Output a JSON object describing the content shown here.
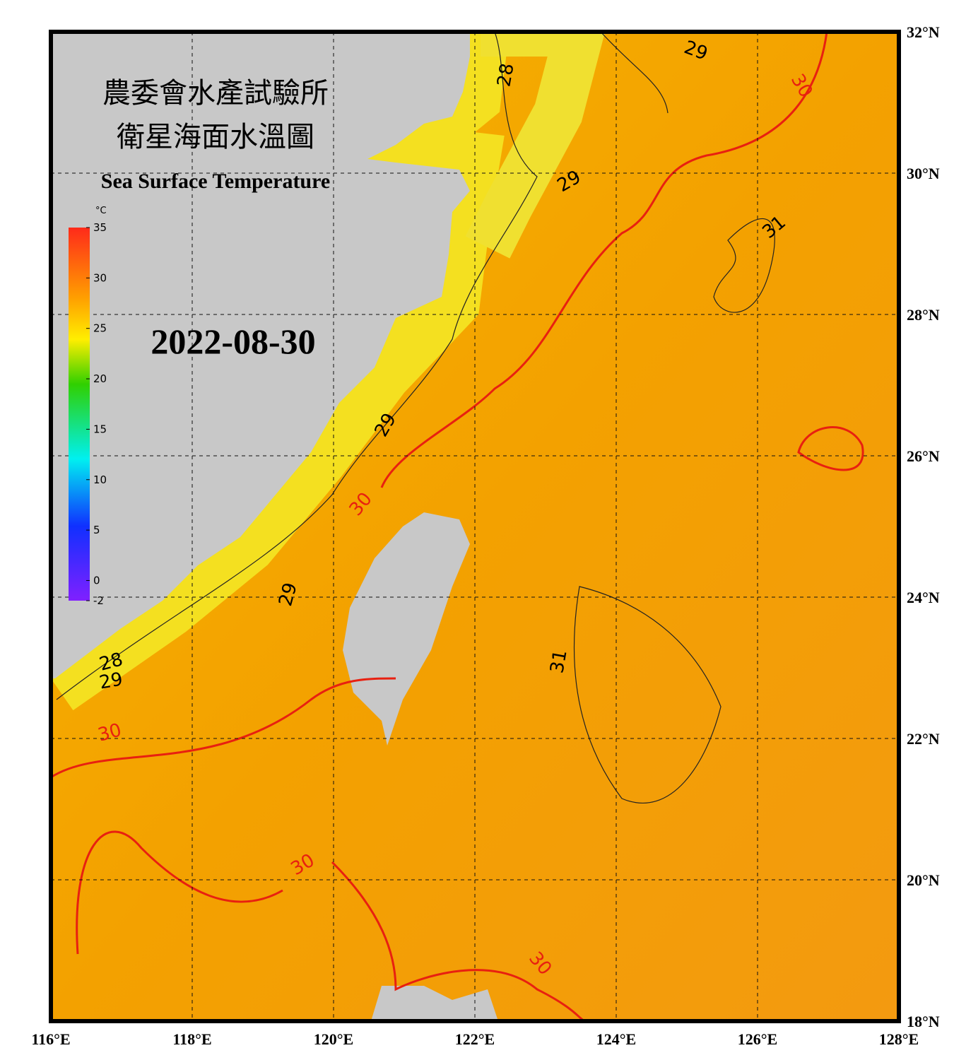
{
  "header": {
    "title_line1": "農委會水產試驗所",
    "title_line2": "衛星海面水溫圖",
    "subtitle": "Sea Surface Temperature",
    "date": "2022-08-30"
  },
  "colorbar": {
    "unit": "°C",
    "range": [
      -2,
      35
    ],
    "ticks": [
      35,
      30,
      25,
      20,
      15,
      10,
      5,
      0,
      -2
    ]
  },
  "longitudes": [
    "116°E",
    "118°E",
    "120°E",
    "122°E",
    "124°E",
    "126°E",
    "128°E"
  ],
  "latitudes": [
    "32°N",
    "30°N",
    "28°N",
    "26°N",
    "24°N",
    "22°N",
    "20°N",
    "18°N"
  ],
  "contour_labels": [
    "29",
    "30",
    "28",
    "29",
    "31",
    "29",
    "30",
    "29",
    "31",
    "28",
    "29",
    "30",
    "30",
    "30"
  ]
}
